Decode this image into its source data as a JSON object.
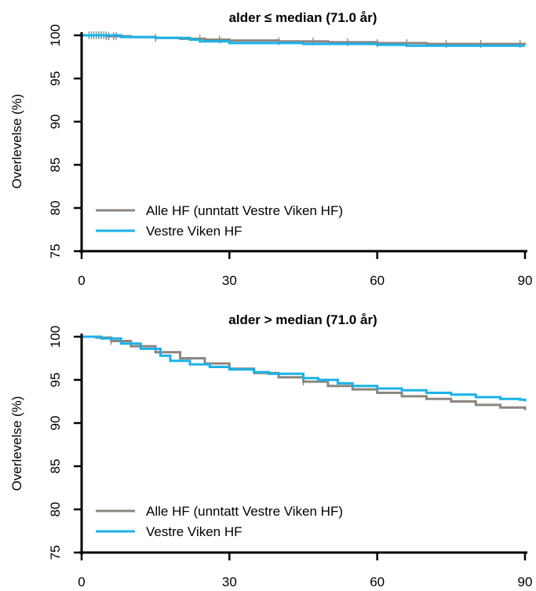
{
  "colors": {
    "alle": "#8c8680",
    "vestre": "#1ab2e8",
    "axis": "#000000"
  },
  "chart_data": [
    {
      "type": "line",
      "title": "alder ≤ median (71.0 år)",
      "ylabel": "Overlevelse (%)",
      "xlabel": "",
      "xlim": [
        0,
        90
      ],
      "ylim": [
        75,
        100
      ],
      "x_ticks": [
        0,
        30,
        60,
        90
      ],
      "y_ticks": [
        75,
        80,
        85,
        90,
        95,
        100
      ],
      "x_tick_labels": [
        "0",
        "30",
        "60",
        "90"
      ],
      "y_tick_labels": [
        "75",
        "80",
        "85",
        "90",
        "95",
        "100"
      ],
      "legend": [
        "Alle HF (unntatt Vestre Viken HF)",
        "Vestre Viken HF"
      ],
      "legend_position": "bottom-left",
      "series": [
        {
          "name": "Alle HF (unntatt Vestre Viken HF)",
          "color_key": "alle",
          "x": [
            0,
            5,
            10,
            15,
            20,
            25,
            30,
            40,
            50,
            60,
            70,
            80,
            90
          ],
          "y": [
            100,
            99.9,
            99.8,
            99.7,
            99.6,
            99.5,
            99.4,
            99.3,
            99.2,
            99.1,
            99.0,
            99.0,
            98.9
          ],
          "censor_x": [
            1.5,
            2,
            2.5,
            3,
            3.5,
            4,
            4.5,
            5,
            5.5,
            6.5,
            7,
            15,
            24,
            28,
            40,
            47,
            54,
            60,
            66,
            74,
            81,
            89
          ]
        },
        {
          "name": "Vestre Viken HF",
          "color_key": "vestre",
          "x": [
            0,
            8,
            15,
            22,
            24,
            30,
            45,
            60,
            66,
            90
          ],
          "y": [
            100,
            99.8,
            99.7,
            99.5,
            99.3,
            99.1,
            99.0,
            98.9,
            98.8,
            98.8
          ],
          "censor_x": [
            2,
            3.5,
            5
          ]
        }
      ]
    },
    {
      "type": "line",
      "title": "alder > median (71.0 år)",
      "ylabel": "Overlevelse (%)",
      "xlabel": "",
      "xlim": [
        0,
        90
      ],
      "ylim": [
        75,
        100
      ],
      "x_ticks": [
        0,
        30,
        60,
        90
      ],
      "y_ticks": [
        75,
        80,
        85,
        90,
        95,
        100
      ],
      "x_tick_labels": [
        "0",
        "30",
        "60",
        "90"
      ],
      "y_tick_labels": [
        "75",
        "80",
        "85",
        "90",
        "95",
        "100"
      ],
      "legend": [
        "Alle HF (unntatt Vestre Viken HF)",
        "Vestre Viken HF"
      ],
      "legend_position": "bottom-left",
      "series": [
        {
          "name": "Alle HF (unntatt Vestre Viken HF)",
          "color_key": "alle",
          "x": [
            0,
            3,
            6,
            10,
            15,
            20,
            25,
            30,
            35,
            40,
            45,
            50,
            55,
            60,
            65,
            70,
            75,
            80,
            85,
            90
          ],
          "y": [
            100,
            99.9,
            99.5,
            98.9,
            98.2,
            97.5,
            96.9,
            96.3,
            95.8,
            95.3,
            94.8,
            94.3,
            93.9,
            93.5,
            93.1,
            92.8,
            92.5,
            92.1,
            91.8,
            91.5
          ],
          "censor_x": [
            6,
            16,
            45
          ]
        },
        {
          "name": "Vestre Viken HF",
          "color_key": "vestre",
          "x": [
            0,
            4,
            8,
            12,
            16,
            18,
            22,
            26,
            30,
            35,
            38,
            45,
            48,
            52,
            55,
            60,
            65,
            70,
            75,
            80,
            85,
            89,
            90
          ],
          "y": [
            100,
            99.8,
            99.2,
            98.6,
            97.8,
            97.2,
            96.8,
            96.5,
            96.2,
            95.9,
            95.7,
            95.2,
            95.0,
            94.6,
            94.3,
            94.0,
            93.8,
            93.5,
            93.3,
            93.0,
            92.8,
            92.7,
            92.5
          ],
          "censor_x": []
        }
      ]
    }
  ]
}
